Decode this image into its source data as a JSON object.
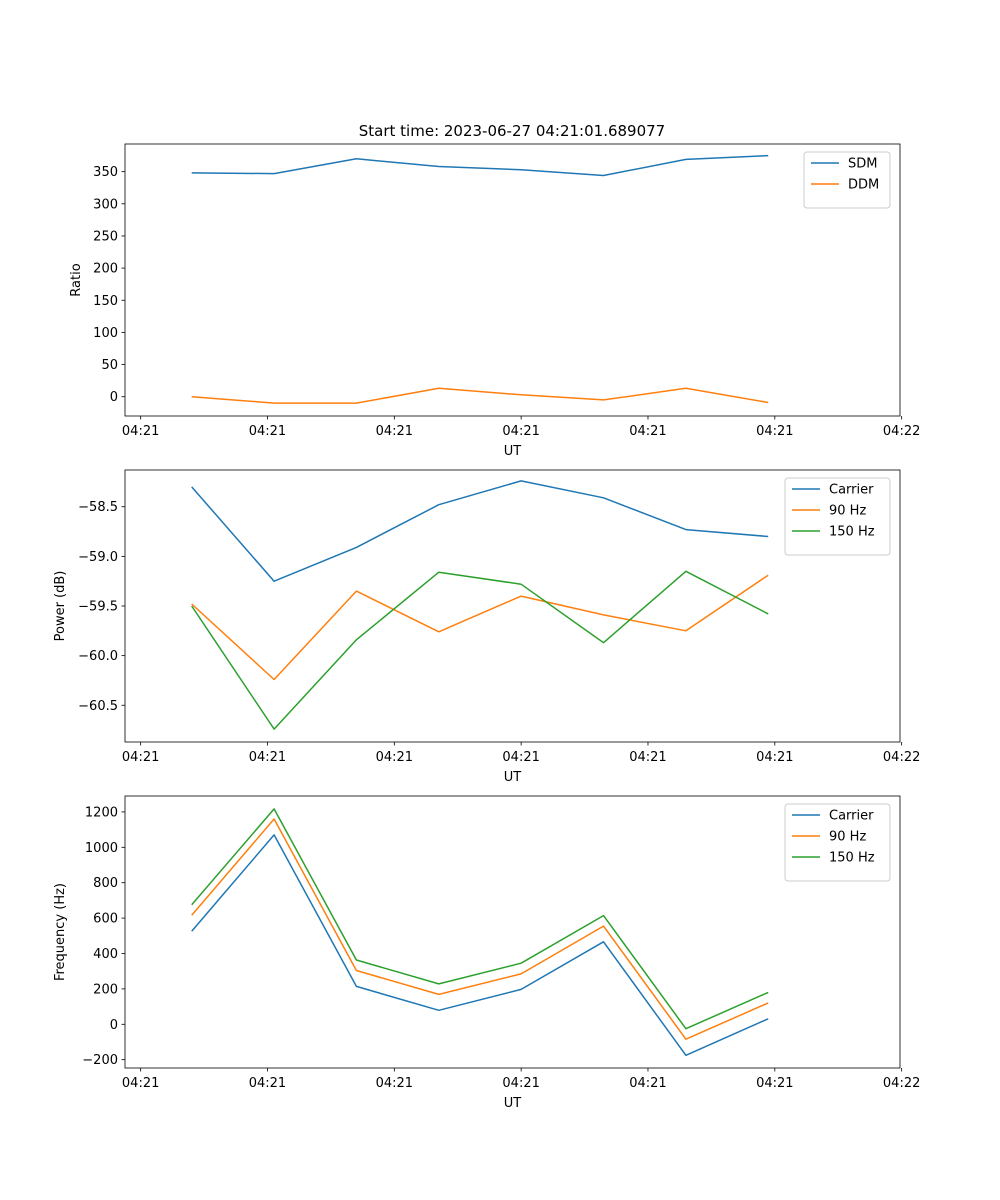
{
  "figure_title": "Start time: 2023-06-27 04:21:01.689077",
  "colors": {
    "blue": "#1f77b4",
    "orange": "#ff7f0e",
    "green": "#2ca02c"
  },
  "chart_data": [
    {
      "type": "line",
      "title": "Start time: 2023-06-27 04:21:01.689077",
      "xlabel": "UT",
      "ylabel": "Ratio",
      "x": [
        1,
        2,
        3,
        4,
        5,
        6,
        7,
        8
      ],
      "xlim": [
        0.19,
        9.6
      ],
      "xticks": [
        0.38,
        1.92,
        3.46,
        5.0,
        6.54,
        8.08,
        9.62
      ],
      "xtick_labels": [
        "04:21",
        "04:21",
        "04:21",
        "04:21",
        "04:21",
        "04:21",
        "04:22"
      ],
      "ylim": [
        -30,
        393
      ],
      "yticks": [
        0,
        50,
        100,
        150,
        200,
        250,
        300,
        350
      ],
      "ytick_labels": [
        "0",
        "50",
        "100",
        "150",
        "200",
        "250",
        "300",
        "350"
      ],
      "legend": "upper right",
      "series": [
        {
          "name": "SDM",
          "color": "#1f77b4",
          "values": [
            348,
            347,
            370,
            358,
            353,
            344,
            369,
            375
          ]
        },
        {
          "name": "DDM",
          "color": "#ff7f0e",
          "values": [
            0,
            -10,
            -10,
            13,
            3,
            -5,
            13,
            -9
          ]
        }
      ]
    },
    {
      "type": "line",
      "title": "",
      "xlabel": "UT",
      "ylabel": "Power (dB)",
      "x": [
        1,
        2,
        3,
        4,
        5,
        6,
        7,
        8
      ],
      "xlim": [
        0.19,
        9.6
      ],
      "xticks": [
        0.38,
        1.92,
        3.46,
        5.0,
        6.54,
        8.08,
        9.62
      ],
      "xtick_labels": [
        "04:21",
        "04:21",
        "04:21",
        "04:21",
        "04:21",
        "04:21",
        "04:22"
      ],
      "ylim": [
        -60.87,
        -58.13
      ],
      "yticks": [
        -60.5,
        -60.0,
        -59.5,
        -59.0,
        -58.5
      ],
      "ytick_labels": [
        "−60.5",
        "−60.0",
        "−59.5",
        "−59.0",
        "−58.5"
      ],
      "legend": "upper right",
      "series": [
        {
          "name": "Carrier",
          "color": "#1f77b4",
          "values": [
            -58.3,
            -59.25,
            -58.91,
            -58.48,
            -58.24,
            -58.41,
            -58.73,
            -58.8
          ]
        },
        {
          "name": "90 Hz",
          "color": "#ff7f0e",
          "values": [
            -59.48,
            -60.24,
            -59.35,
            -59.76,
            -59.4,
            -59.59,
            -59.75,
            -59.19
          ]
        },
        {
          "name": "150 Hz",
          "color": "#2ca02c",
          "values": [
            -59.5,
            -60.74,
            -59.84,
            -59.16,
            -59.28,
            -59.87,
            -59.15,
            -59.58
          ]
        }
      ]
    },
    {
      "type": "line",
      "title": "",
      "xlabel": "UT",
      "ylabel": "Frequency (Hz)",
      "x": [
        1,
        2,
        3,
        4,
        5,
        6,
        7,
        8
      ],
      "xlim": [
        0.19,
        9.6
      ],
      "xticks": [
        0.38,
        1.92,
        3.46,
        5.0,
        6.54,
        8.08,
        9.62
      ],
      "xtick_labels": [
        "04:21",
        "04:21",
        "04:21",
        "04:21",
        "04:21",
        "04:21",
        "04:22"
      ],
      "ylim": [
        -247,
        1290
      ],
      "yticks": [
        -200,
        0,
        200,
        400,
        600,
        800,
        1000,
        1200
      ],
      "ytick_labels": [
        "−200",
        "0",
        "200",
        "400",
        "600",
        "800",
        "1000",
        "1200"
      ],
      "legend": "upper right",
      "series": [
        {
          "name": "Carrier",
          "color": "#1f77b4",
          "values": [
            526,
            1070,
            214,
            79,
            197,
            466,
            -175,
            31
          ]
        },
        {
          "name": "90 Hz",
          "color": "#ff7f0e",
          "values": [
            616,
            1160,
            304,
            169,
            285,
            555,
            -84,
            121
          ]
        },
        {
          "name": "150 Hz",
          "color": "#2ca02c",
          "values": [
            675,
            1217,
            363,
            228,
            345,
            614,
            -25,
            180
          ]
        }
      ]
    }
  ]
}
